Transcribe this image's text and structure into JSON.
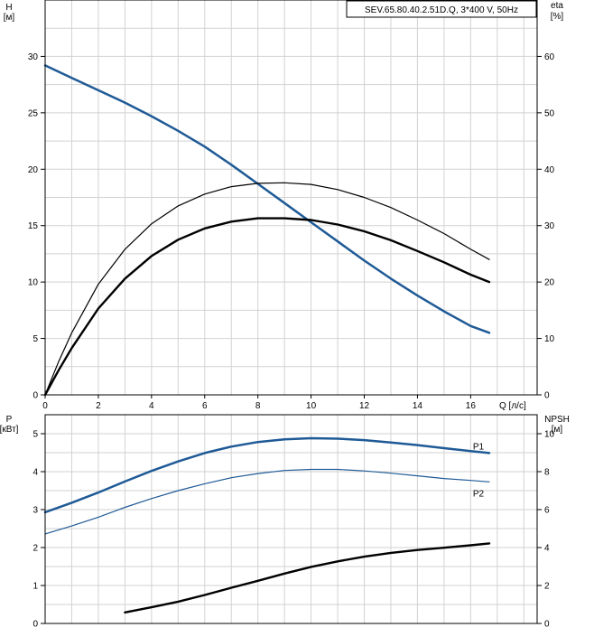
{
  "title_box": "SEV.65.80.40.2.51D.Q, 3*400 V, 50Hz",
  "colors": {
    "blue": "#1f5a96",
    "black": "#000000",
    "grid": "#d2d2d2"
  },
  "chart_data": [
    {
      "type": "line",
      "xlabel": "Q [л/с]",
      "ylabel": "H\n[м]",
      "y2label": "eta\n[%]",
      "xlim": [
        0,
        18.5
      ],
      "ylim": [
        0,
        35
      ],
      "y2lim": [
        0,
        70
      ],
      "xticks": [
        0,
        2,
        4,
        6,
        8,
        10,
        12,
        14,
        16
      ],
      "yticks": [
        0,
        5,
        10,
        15,
        20,
        25,
        30
      ],
      "y2ticks": [
        0,
        10,
        20,
        30,
        40,
        50,
        60
      ],
      "grid": true,
      "series": [
        {
          "axis": "y",
          "color": "#1f5a96",
          "width": 2.5,
          "x": [
            0,
            1,
            2,
            3,
            4,
            5,
            6,
            7,
            8,
            9,
            10,
            11,
            12,
            13,
            14,
            15,
            16,
            16.7
          ],
          "y": [
            29.2,
            28.1,
            27.0,
            25.9,
            24.7,
            23.4,
            22.0,
            20.4,
            18.7,
            17.0,
            15.3,
            13.6,
            11.9,
            10.3,
            8.8,
            7.4,
            6.1,
            5.5
          ]
        },
        {
          "axis": "y2",
          "color": "#000000",
          "width": 1.2,
          "x": [
            0,
            0.5,
            1,
            2,
            3,
            4,
            5,
            6,
            7,
            8,
            9,
            10,
            11,
            12,
            13,
            14,
            15,
            16,
            16.7
          ],
          "y": [
            0,
            5.8,
            11,
            19.6,
            25.8,
            30.3,
            33.5,
            35.6,
            36.9,
            37.5,
            37.6,
            37.3,
            36.4,
            35.0,
            33.2,
            31.0,
            28.6,
            25.8,
            24.0
          ]
        },
        {
          "axis": "y2",
          "color": "#000000",
          "width": 2.4,
          "x": [
            0,
            0.5,
            1,
            2,
            3,
            4,
            5,
            6,
            7,
            8,
            9,
            10,
            11,
            12,
            13,
            14,
            15,
            16,
            16.7
          ],
          "y": [
            0,
            4.3,
            8.3,
            15.3,
            20.6,
            24.6,
            27.5,
            29.5,
            30.7,
            31.3,
            31.3,
            31.0,
            30.2,
            29.0,
            27.4,
            25.5,
            23.5,
            21.3,
            20.0
          ]
        }
      ]
    },
    {
      "type": "line",
      "ylabel": "P\n[кВт]",
      "y2label": "NPSH\n[м]",
      "xlim": [
        0,
        18.5
      ],
      "ylim": [
        0,
        5.5
      ],
      "y2lim": [
        0,
        11
      ],
      "yticks": [
        0,
        1,
        2,
        3,
        4,
        5
      ],
      "y2ticks": [
        0,
        2,
        4,
        6,
        8,
        10
      ],
      "grid": true,
      "series": [
        {
          "name": "P1",
          "axis": "y",
          "color": "#1f5a96",
          "width": 2.5,
          "x": [
            0,
            1,
            2,
            3,
            4,
            5,
            6,
            7,
            8,
            9,
            10,
            11,
            12,
            13,
            14,
            15,
            16,
            16.7
          ],
          "y": [
            2.93,
            3.18,
            3.45,
            3.74,
            4.02,
            4.27,
            4.49,
            4.66,
            4.78,
            4.85,
            4.88,
            4.87,
            4.83,
            4.77,
            4.7,
            4.62,
            4.54,
            4.49
          ]
        },
        {
          "name": "P2",
          "axis": "y",
          "color": "#1f5a96",
          "width": 1.2,
          "x": [
            0,
            1,
            2,
            3,
            4,
            5,
            6,
            7,
            8,
            9,
            10,
            11,
            12,
            13,
            14,
            15,
            16,
            16.7
          ],
          "y": [
            2.36,
            2.57,
            2.8,
            3.06,
            3.29,
            3.5,
            3.68,
            3.84,
            3.95,
            4.03,
            4.06,
            4.06,
            4.02,
            3.96,
            3.89,
            3.82,
            3.77,
            3.73
          ]
        },
        {
          "axis": "y2",
          "color": "#000000",
          "width": 2.4,
          "x": [
            3,
            4,
            5,
            6,
            7,
            8,
            9,
            10,
            11,
            12,
            13,
            14,
            15,
            16,
            16.7
          ],
          "y": [
            0.58,
            0.85,
            1.15,
            1.5,
            1.88,
            2.25,
            2.63,
            2.98,
            3.27,
            3.52,
            3.72,
            3.87,
            3.99,
            4.12,
            4.22
          ]
        }
      ]
    }
  ]
}
